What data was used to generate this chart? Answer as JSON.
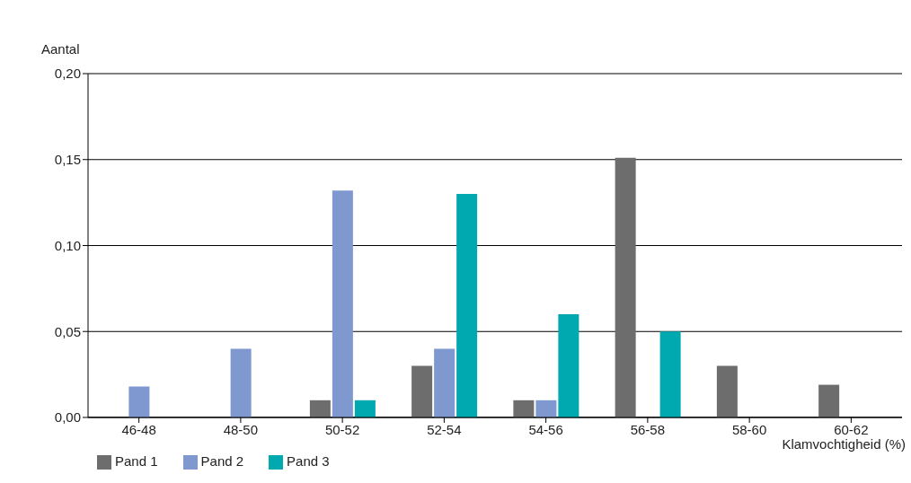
{
  "chart_data": {
    "type": "bar",
    "ylabel": "Aantal",
    "xlabel": "Klamvochtigheid (%)",
    "categories": [
      "46-48",
      "48-50",
      "50-52",
      "52-54",
      "54-56",
      "56-58",
      "58-60",
      "60-62"
    ],
    "series": [
      {
        "name": "Pand 1",
        "color": "#6d6d6d",
        "values": [
          0,
          0,
          0.01,
          0.03,
          0.01,
          0.151,
          0.03,
          0.019
        ]
      },
      {
        "name": "Pand 2",
        "color": "#7f98cf",
        "values": [
          0.018,
          0.04,
          0.132,
          0.04,
          0.01,
          0,
          0,
          0
        ]
      },
      {
        "name": "Pand 3",
        "color": "#00a9b0",
        "values": [
          0,
          0,
          0.01,
          0.13,
          0.06,
          0.05,
          0,
          0
        ]
      }
    ],
    "ylim": [
      0,
      0.2
    ],
    "yticks": [
      {
        "value": 0,
        "label": "0,00"
      },
      {
        "value": 0.05,
        "label": "0,05"
      },
      {
        "value": 0.1,
        "label": "0,10"
      },
      {
        "value": 0.15,
        "label": "0,15"
      },
      {
        "value": 0.2,
        "label": "0,20"
      }
    ],
    "grid": "y",
    "legend": "bottom left"
  }
}
